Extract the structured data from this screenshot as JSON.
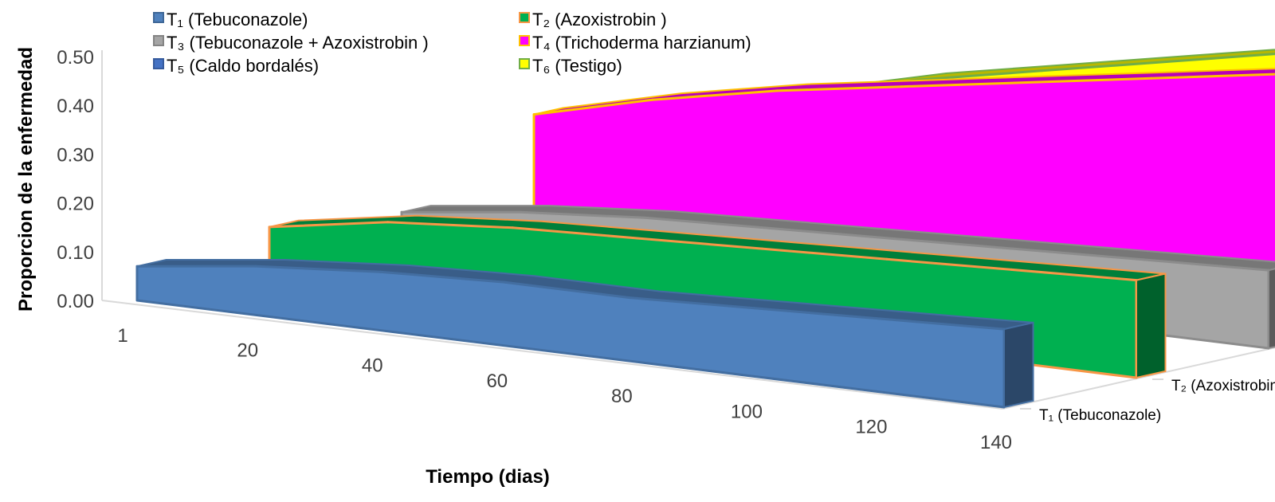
{
  "chart_data": {
    "type": "area",
    "style": "3d-area",
    "ylabel": "Proporcion de la enfermedad",
    "xlabel": "Tiempo (dias)",
    "y_ticks": [
      "0.00",
      "0.10",
      "0.20",
      "0.30",
      "0.40",
      "0.50"
    ],
    "ylim": [
      0,
      0.5
    ],
    "x_ticks": [
      "1",
      "20",
      "40",
      "60",
      "80",
      "100",
      "120",
      "140"
    ],
    "x": [
      1,
      20,
      40,
      60,
      80,
      100,
      120,
      140
    ],
    "legend_position": "top",
    "series": [
      {
        "name": "T₁ (Tebuconazole)",
        "depth_label": "T₁ (Tebuconazole)",
        "color": "#4f81bd",
        "values": [
          0.07,
          0.1,
          0.12,
          0.13,
          0.13,
          0.14,
          0.15,
          0.16
        ]
      },
      {
        "name": "T₂ (Azoxistrobin )",
        "depth_label": "T₂ (Azoxistrobin )",
        "color": "#00b050",
        "border": "#f79646",
        "values": [
          0.09,
          0.13,
          0.15,
          0.16,
          0.17,
          0.18,
          0.19,
          0.2
        ]
      },
      {
        "name": "T₃ (Tebuconazole + Azoxistrobin )",
        "depth_label": "T₃ (Tebuconazole +…",
        "color": "#a5a5a5",
        "values": [
          0.06,
          0.09,
          0.11,
          0.12,
          0.13,
          0.14,
          0.15,
          0.16
        ]
      },
      {
        "name": "T₄ (Trichoderma harzianum)",
        "depth_label": "T₄ (Trichoderma harzianum)",
        "color": "#ff00ff",
        "border": "#ffc000",
        "values": [
          0.2,
          0.26,
          0.31,
          0.35,
          0.39,
          0.43,
          0.47,
          0.5
        ]
      },
      {
        "name": "T₅ (Caldo bordalés)",
        "depth_label": "T₅ (Caldo bordalés)",
        "color": "#4472c4",
        "values": [
          0.1,
          0.15,
          0.2,
          0.24,
          0.28,
          0.32,
          0.36,
          0.4
        ]
      },
      {
        "name": "T₆ (Testigo)",
        "depth_label": "T₆ (Testigo)",
        "color": "#ffff00",
        "border": "#70ad47",
        "values": [
          0.12,
          0.18,
          0.23,
          0.28,
          0.33,
          0.38,
          0.43,
          0.47
        ]
      }
    ]
  }
}
